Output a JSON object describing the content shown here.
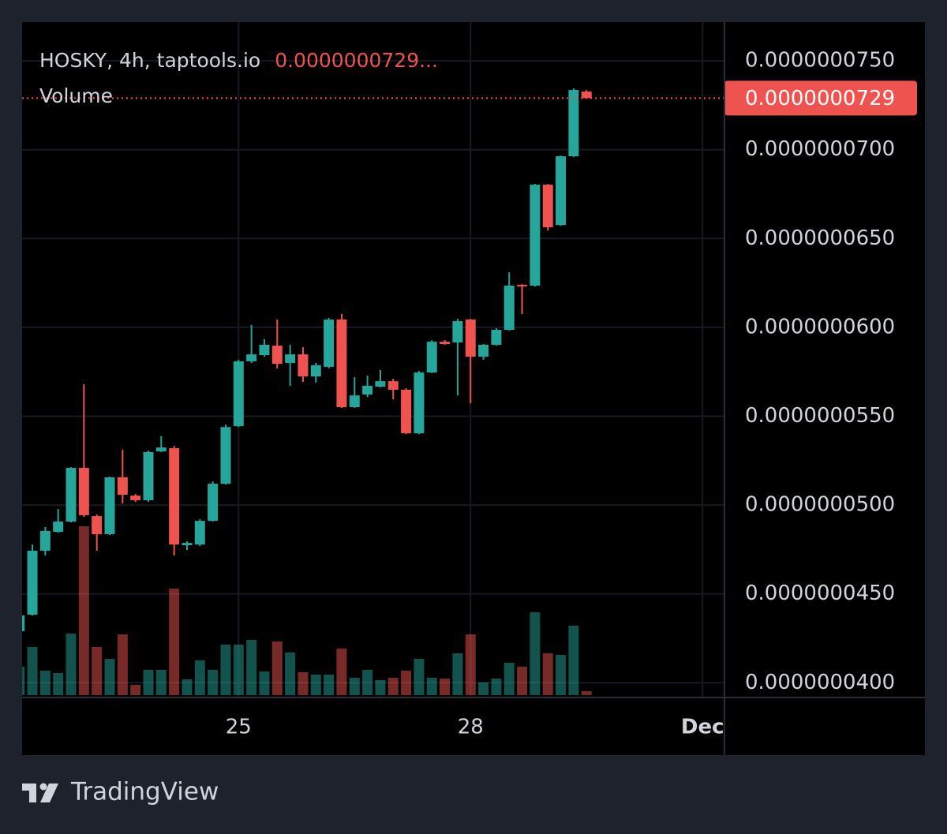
{
  "chart_data": {
    "type": "candlestick",
    "title": "HOSKY, 4h, taptools.io",
    "legend_price": "0.0000000729...",
    "volume_label": "Volume",
    "last_price_label": "0.0000000729",
    "up_color": "#26a69a",
    "down_color": "#ef5350",
    "grid": true,
    "ylim": [
      3.917e-08,
      7.718e-08
    ],
    "yticks": [
      {
        "value": 4e-08,
        "label": "0.0000000400"
      },
      {
        "value": 4.5e-08,
        "label": "0.0000000450"
      },
      {
        "value": 5e-08,
        "label": "0.0000000500"
      },
      {
        "value": 5.5e-08,
        "label": "0.0000000550"
      },
      {
        "value": 6e-08,
        "label": "0.0000000600"
      },
      {
        "value": 6.5e-08,
        "label": "0.0000000650"
      },
      {
        "value": 7e-08,
        "label": "0.0000000700"
      },
      {
        "value": 7.5e-08,
        "label": "0.0000000750"
      }
    ],
    "categories": [
      null,
      null,
      null,
      null,
      null,
      null,
      null,
      null,
      null,
      null,
      null,
      null,
      null,
      null,
      null,
      null,
      null,
      "25",
      null,
      null,
      null,
      null,
      null,
      null,
      null,
      null,
      null,
      null,
      null,
      null,
      null,
      null,
      null,
      null,
      null,
      "28",
      null,
      null,
      null,
      null,
      null,
      null,
      null,
      null,
      null,
      null,
      null,
      null,
      null,
      null,
      null,
      null,
      null,
      "Dec"
    ],
    "open": [
      4.29e-08,
      4.383e-08,
      4.743e-08,
      4.849e-08,
      4.907e-08,
      5.209e-08,
      4.938e-08,
      4.836e-08,
      5.156e-08,
      5.053e-08,
      5.027e-08,
      5.302e-08,
      5.32e-08,
      4.774e-08,
      4.778e-08,
      4.911e-08,
      5.12e-08,
      5.444e-08,
      5.809e-08,
      5.844e-08,
      5.897e-08,
      5.8e-08,
      5.848e-08,
      5.724e-08,
      5.778e-08,
      6.044e-08,
      5.551e-08,
      5.622e-08,
      5.666e-08,
      5.697e-08,
      5.649e-08,
      5.404e-08,
      5.746e-08,
      5.919e-08,
      5.915e-08,
      6.044e-08,
      5.835e-08,
      5.902e-08,
      5.986e-08,
      6.239e-08,
      6.235e-08,
      6.803e-08,
      6.576e-08,
      6.963e-08,
      7.327e-08,
      null,
      null,
      null,
      null,
      null,
      null,
      null,
      null,
      null
    ],
    "high": [
      4.401e-08,
      4.778e-08,
      4.876e-08,
      4.978e-08,
      5.213e-08,
      5.68e-08,
      4.947e-08,
      5.16e-08,
      5.311e-08,
      5.062e-08,
      5.307e-08,
      5.387e-08,
      5.333e-08,
      4.796e-08,
      4.92e-08,
      5.133e-08,
      5.453e-08,
      5.818e-08,
      6.013e-08,
      5.933e-08,
      6.044e-08,
      5.902e-08,
      5.888e-08,
      5.8e-08,
      6.053e-08,
      6.075e-08,
      5.72e-08,
      5.728e-08,
      5.76e-08,
      5.711e-08,
      5.657e-08,
      5.755e-08,
      5.928e-08,
      5.928e-08,
      6.048e-08,
      6.048e-08,
      5.906e-08,
      5.995e-08,
      6.31e-08,
      6.243e-08,
      6.807e-08,
      6.807e-08,
      6.967e-08,
      7.345e-08,
      7.336e-08,
      null,
      null,
      null,
      null,
      null,
      null,
      null,
      null,
      null
    ],
    "low": [
      4.281e-08,
      4.379e-08,
      4.716e-08,
      4.845e-08,
      4.903e-08,
      4.934e-08,
      4.743e-08,
      4.831e-08,
      5.009e-08,
      5.018e-08,
      5.018e-08,
      5.298e-08,
      4.716e-08,
      4.747e-08,
      4.769e-08,
      4.907e-08,
      5.115e-08,
      5.439e-08,
      5.8e-08,
      5.835e-08,
      5.769e-08,
      5.671e-08,
      5.693e-08,
      5.689e-08,
      5.769e-08,
      5.546e-08,
      5.546e-08,
      5.608e-08,
      5.662e-08,
      5.595e-08,
      5.399e-08,
      5.399e-08,
      5.742e-08,
      5.902e-08,
      5.617e-08,
      5.573e-08,
      5.818e-08,
      5.897e-08,
      5.982e-08,
      6.075e-08,
      6.23e-08,
      6.545e-08,
      6.572e-08,
      6.958e-08,
      7.29e-08,
      null,
      null,
      null,
      null,
      null,
      null,
      null,
      null,
      null
    ],
    "close": [
      4.379e-08,
      4.743e-08,
      4.854e-08,
      4.907e-08,
      5.209e-08,
      4.943e-08,
      4.836e-08,
      5.156e-08,
      5.058e-08,
      5.027e-08,
      5.298e-08,
      5.324e-08,
      4.778e-08,
      4.787e-08,
      4.911e-08,
      5.12e-08,
      5.439e-08,
      5.809e-08,
      5.848e-08,
      5.902e-08,
      5.795e-08,
      5.848e-08,
      5.724e-08,
      5.787e-08,
      6.044e-08,
      5.551e-08,
      5.617e-08,
      5.671e-08,
      5.697e-08,
      5.649e-08,
      5.404e-08,
      5.746e-08,
      5.919e-08,
      5.906e-08,
      6.035e-08,
      5.835e-08,
      5.902e-08,
      5.986e-08,
      6.235e-08,
      6.23e-08,
      6.803e-08,
      6.563e-08,
      6.963e-08,
      7.336e-08,
      7.29e-08,
      null,
      null,
      null,
      null,
      null,
      null,
      null,
      null,
      null
    ],
    "volume": [
      36,
      61,
      31,
      28,
      78,
      214,
      61,
      46,
      77,
      13,
      32,
      32,
      135,
      20,
      44,
      32,
      64,
      64,
      70,
      30,
      68,
      54,
      29,
      26,
      26,
      59,
      22,
      32,
      19,
      22,
      31,
      46,
      22,
      21,
      53,
      77,
      16,
      21,
      41,
      36,
      105,
      53,
      51,
      88,
      5,
      null,
      null,
      null,
      null,
      null,
      null,
      null,
      null,
      null
    ]
  },
  "footer": {
    "brand": "TradingView"
  }
}
